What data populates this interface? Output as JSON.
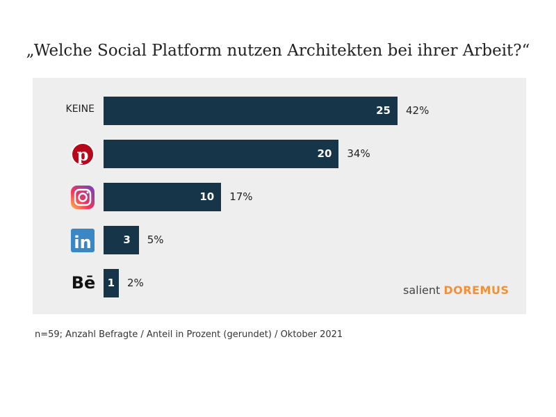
{
  "chart_data": {
    "type": "bar",
    "orientation": "horizontal",
    "title": "„Welche Social Platform nutzen Architekten bei ihrer Arbeit?“",
    "categories": [
      "KEINE",
      "Pinterest",
      "Instagram",
      "LinkedIn",
      "Behance"
    ],
    "category_label_text": [
      "KEINE",
      "",
      "",
      "",
      ""
    ],
    "category_icons": [
      "",
      "pinterest-icon",
      "instagram-icon",
      "linkedin-icon",
      "behance-icon"
    ],
    "values": [
      25,
      20,
      10,
      3,
      1
    ],
    "percent_labels": [
      "42%",
      "34%",
      "17%",
      "5%",
      "2%"
    ],
    "xlim": [
      0,
      25
    ],
    "grid": false,
    "bar_color": "#163549",
    "background_color": "#eeeeee"
  },
  "footnote": "n=59;  Anzahl Befragte / Anteil in Prozent (gerundet) / Oktober 2021",
  "logo": {
    "part1": "salient",
    "part2": "DOREMUS",
    "accent": "#f0913a"
  }
}
